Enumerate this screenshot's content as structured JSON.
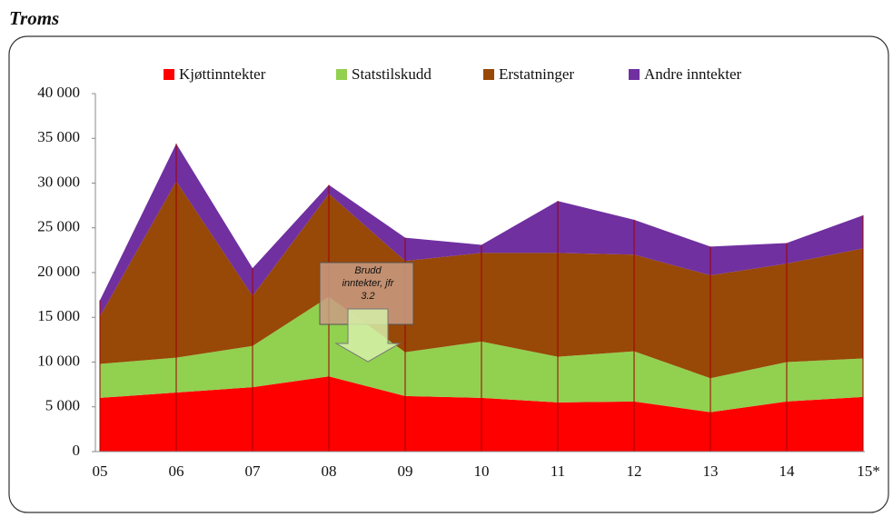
{
  "chart_data": {
    "type": "stacked_area",
    "title": "Troms",
    "categories": [
      "05",
      "06",
      "07",
      "08",
      "09",
      "10",
      "11",
      "12",
      "13",
      "14",
      "15*"
    ],
    "series": [
      {
        "name": "Kjøttinntekter",
        "color": "#ff0000",
        "values": [
          6000,
          6600,
          7200,
          8400,
          6200,
          6000,
          5500,
          5600,
          4400,
          5600,
          6100
        ]
      },
      {
        "name": "Statstilskudd",
        "color": "#92d050",
        "values": [
          3800,
          3900,
          4600,
          8900,
          4900,
          6300,
          5100,
          5600,
          3800,
          4400,
          4300
        ]
      },
      {
        "name": "Erstatninger",
        "color": "#984807",
        "values": [
          5300,
          19700,
          5600,
          11500,
          10200,
          9900,
          11600,
          10800,
          11500,
          11000,
          12300
        ]
      },
      {
        "name": "Andre inntekter",
        "color": "#7030a0",
        "values": [
          1800,
          4200,
          3100,
          1000,
          2600,
          900,
          5800,
          3900,
          3200,
          2300,
          3700
        ]
      }
    ],
    "ylim": [
      0,
      40000
    ],
    "yticks": [
      0,
      {
        "value": 5000,
        "label": "5 000"
      },
      {
        "value": 10000,
        "label": "10 000"
      },
      {
        "value": 15000,
        "label": "15 000"
      },
      {
        "value": 20000,
        "label": "20 000"
      },
      {
        "value": 25000,
        "label": "25 000"
      },
      {
        "value": 30000,
        "label": "30 000"
      },
      {
        "value": 35000,
        "label": "35 000"
      },
      {
        "value": 40000,
        "label": "40 000"
      }
    ],
    "annotation": [
      "Brudd",
      "inntekter, jfr",
      "3.2"
    ]
  }
}
